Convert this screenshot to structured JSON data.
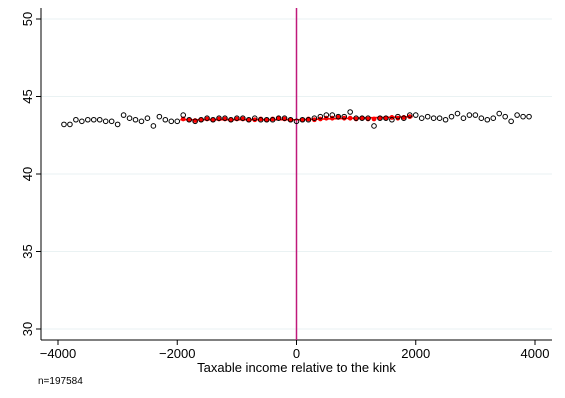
{
  "chart_data": {
    "type": "scatter",
    "title": "",
    "xlabel": "Taxable income relative to the kink",
    "ylabel": "",
    "xlim": [
      -4000,
      4000
    ],
    "ylim": [
      30,
      50
    ],
    "x_ticks": [
      -4000,
      -2000,
      0,
      2000,
      4000
    ],
    "x_tick_labels": [
      "−4000",
      "−2000",
      "0",
      "2000",
      "4000"
    ],
    "y_ticks": [
      30,
      35,
      40,
      45,
      50
    ],
    "y_tick_labels": [
      "30",
      "35",
      "40",
      "45",
      "50"
    ],
    "grid": "horizontal",
    "note": "n=197584",
    "vertical_line": {
      "x": 0,
      "color": "#c0187a"
    },
    "colors": {
      "points": "#000000",
      "fit_points": "#ff0000",
      "fit_line": "#ff0000"
    },
    "series": [
      {
        "marker": "hollow-circle",
        "x": [
          -3900,
          -3800,
          -3700,
          -3600,
          -3500,
          -3400,
          -3300,
          -3200,
          -3100,
          -3000,
          -2900,
          -2800,
          -2700,
          -2600,
          -2500,
          -2400,
          -2300,
          -2200,
          -2100,
          -2000,
          -1900,
          -1800,
          -1700,
          -1600,
          -1500,
          -1400,
          -1300,
          -1200,
          -1100,
          -1000,
          -900,
          -800,
          -700,
          -600,
          -500,
          -400,
          -300,
          -200,
          -100,
          0,
          100,
          200,
          300,
          400,
          500,
          600,
          700,
          800,
          900,
          1000,
          1100,
          1200,
          1300,
          1400,
          1500,
          1600,
          1700,
          1800,
          1900,
          2000,
          2100,
          2200,
          2300,
          2400,
          2500,
          2600,
          2700,
          2800,
          2900,
          3000,
          3100,
          3200,
          3300,
          3400,
          3500,
          3600,
          3700,
          3800,
          3900
        ],
        "y": [
          43.2,
          43.2,
          43.5,
          43.4,
          43.5,
          43.5,
          43.5,
          43.4,
          43.4,
          43.2,
          43.8,
          43.6,
          43.5,
          43.4,
          43.6,
          43.1,
          43.7,
          43.5,
          43.4,
          43.4,
          43.8,
          43.5,
          43.4,
          43.5,
          43.6,
          43.5,
          43.6,
          43.6,
          43.5,
          43.6,
          43.6,
          43.5,
          43.6,
          43.5,
          43.5,
          43.5,
          43.6,
          43.6,
          43.5,
          43.4,
          43.5,
          43.5,
          43.6,
          43.7,
          43.8,
          43.8,
          43.7,
          43.7,
          44.0,
          43.6,
          43.6,
          43.6,
          43.1,
          43.6,
          43.6,
          43.5,
          43.7,
          43.6,
          43.8,
          43.8,
          43.6,
          43.7,
          43.6,
          43.6,
          43.5,
          43.7,
          43.9,
          43.6,
          43.8,
          43.8,
          43.6,
          43.5,
          43.6,
          43.9,
          43.7,
          43.4,
          43.8,
          43.7,
          43.7
        ]
      },
      {
        "marker": "red-filled-circle",
        "x": [
          -1900,
          -1800,
          -1700,
          -1600,
          -1500,
          -1400,
          -1300,
          -1200,
          -1100,
          -1000,
          -900,
          -800,
          -700,
          -600,
          -500,
          -400,
          -300,
          -200,
          -100,
          100,
          200,
          300,
          400,
          500,
          600,
          700,
          800,
          900,
          1000,
          1100,
          1200,
          1300,
          1400,
          1500,
          1600,
          1700,
          1800,
          1900
        ],
        "y": [
          43.55,
          43.5,
          43.45,
          43.5,
          43.55,
          43.5,
          43.55,
          43.55,
          43.5,
          43.55,
          43.55,
          43.5,
          43.5,
          43.55,
          43.5,
          43.55,
          43.6,
          43.55,
          43.5,
          43.5,
          43.55,
          43.5,
          43.55,
          43.6,
          43.6,
          43.65,
          43.6,
          43.6,
          43.55,
          43.6,
          43.55,
          43.55,
          43.6,
          43.6,
          43.65,
          43.6,
          43.65,
          43.7
        ]
      }
    ],
    "fit_lines": [
      {
        "x": [
          -1950,
          0
        ],
        "y": [
          43.5,
          43.5
        ]
      },
      {
        "x": [
          0,
          1950
        ],
        "y": [
          43.5,
          43.7
        ]
      }
    ]
  }
}
